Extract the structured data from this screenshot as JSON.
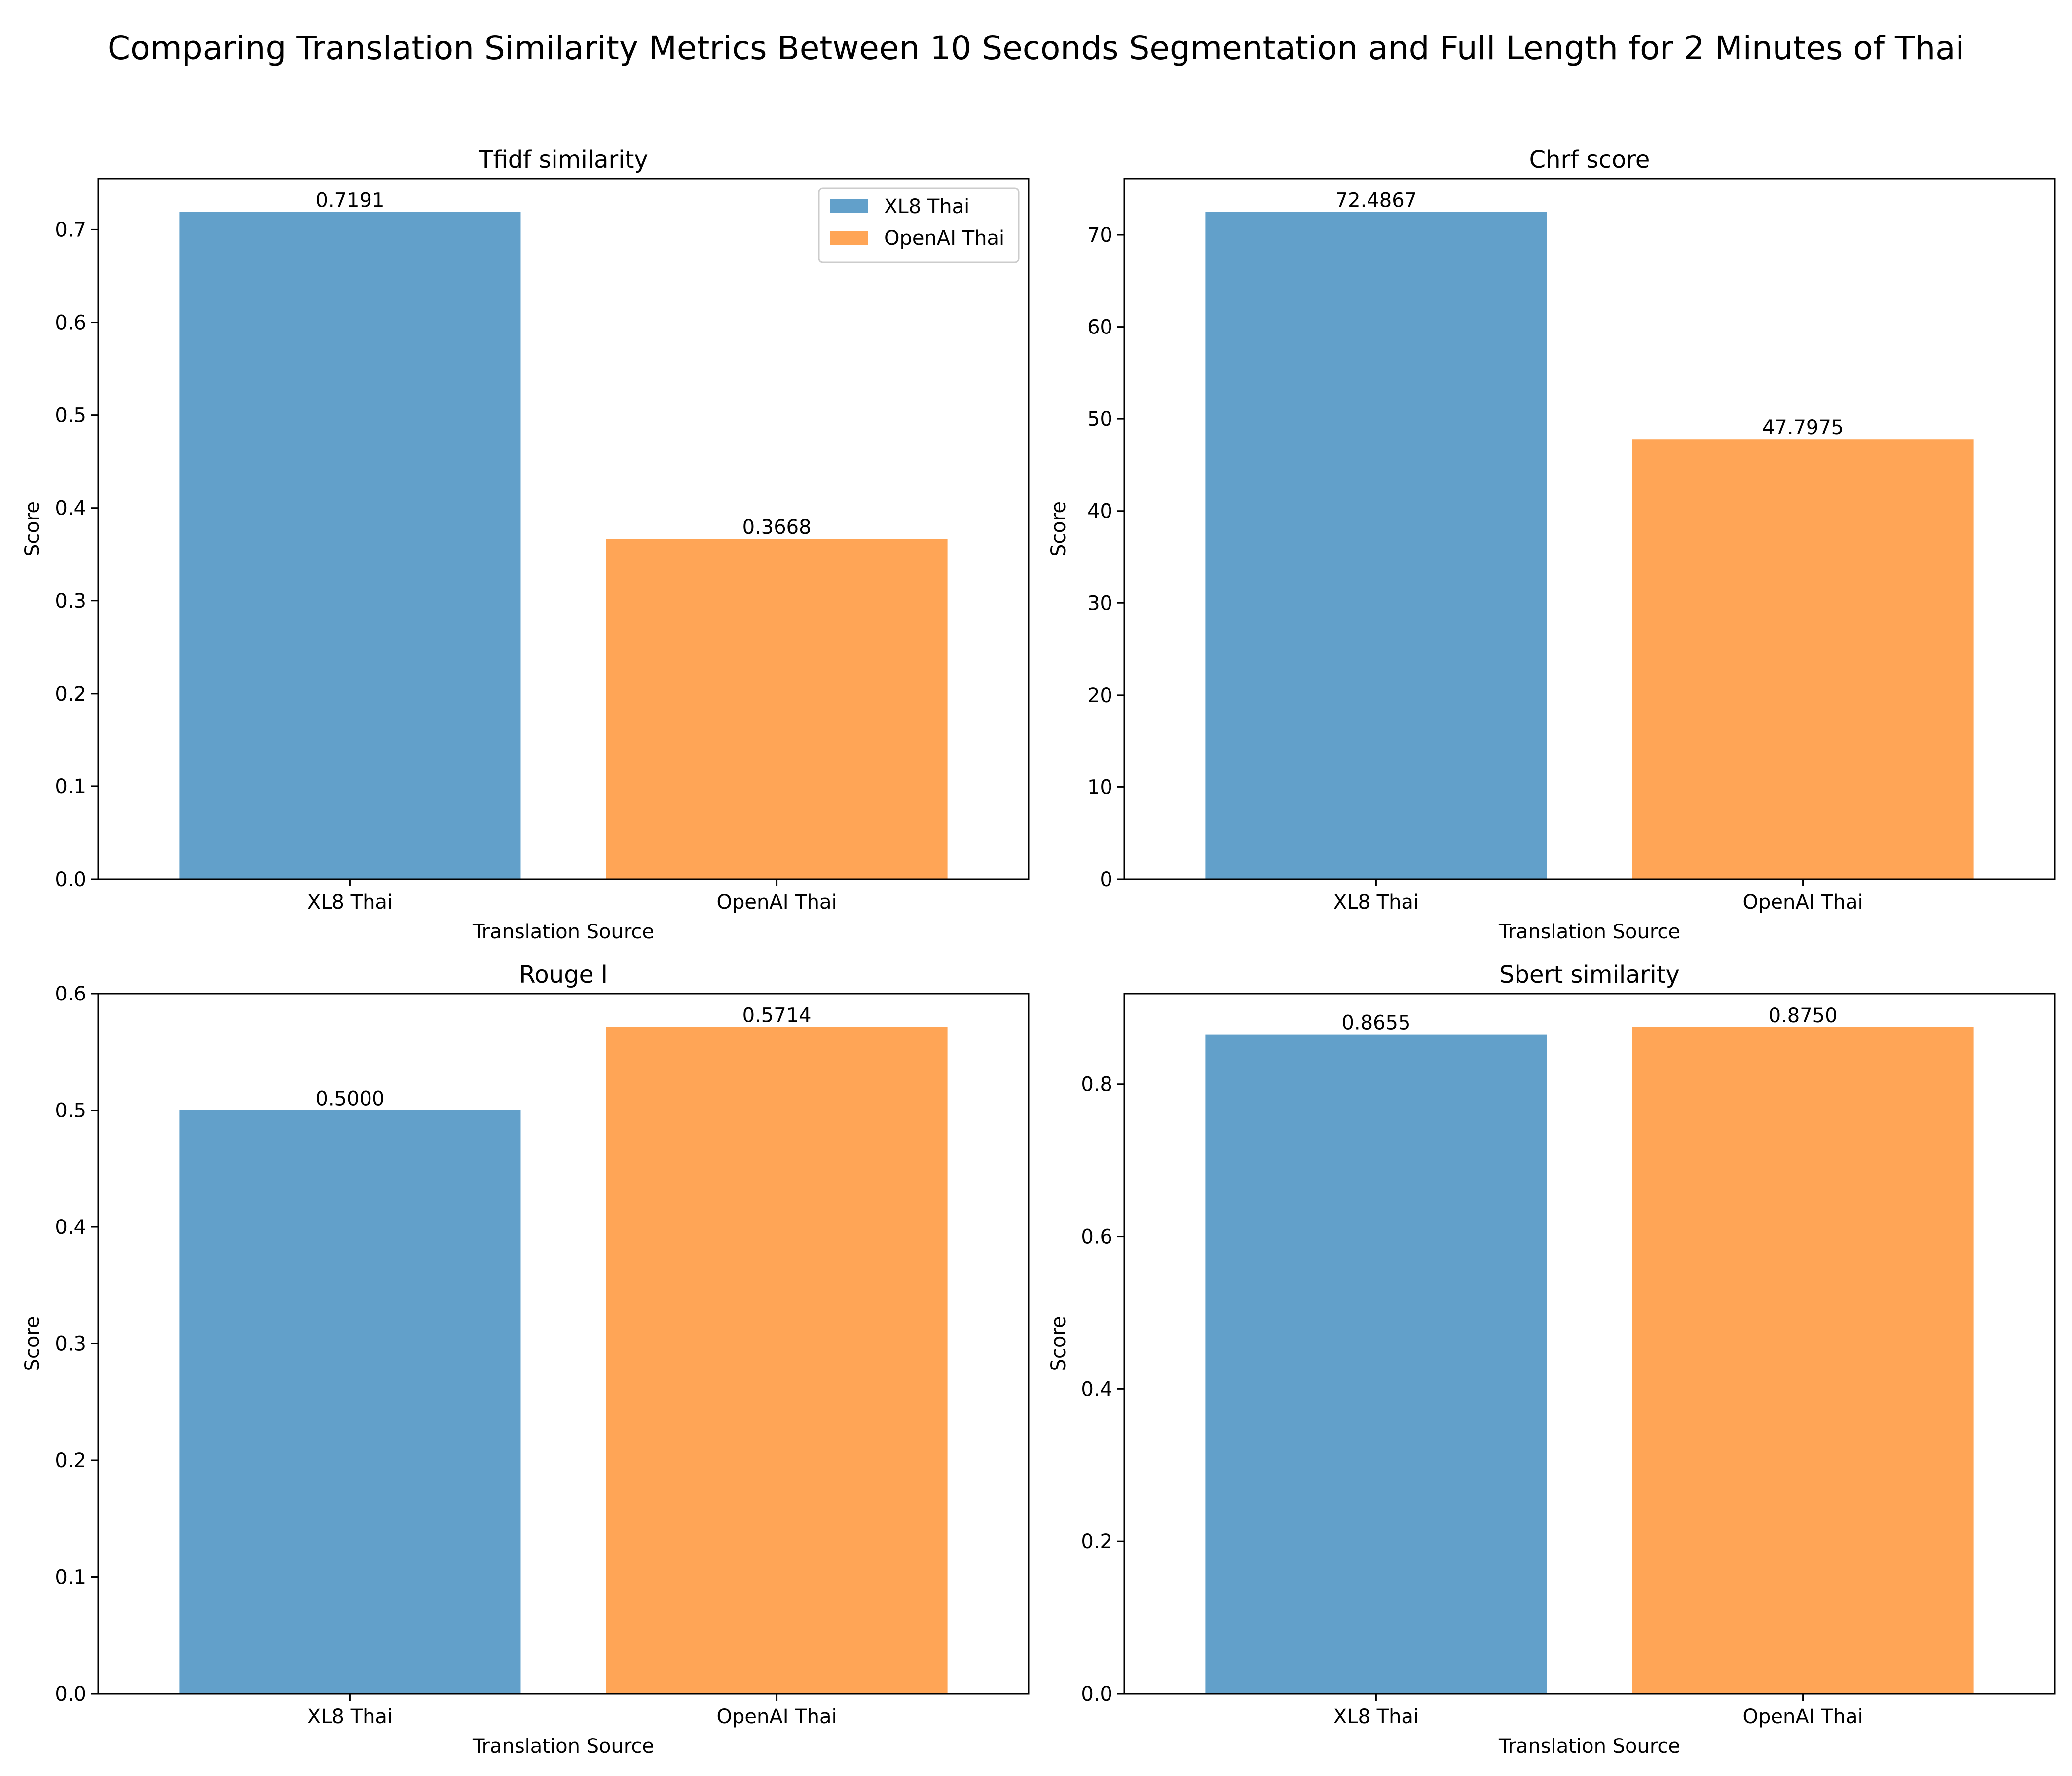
{
  "suptitle": "Comparing Translation Similarity Metrics Between 10 Seconds Segmentation and Full Length for 2 Minutes of Thai",
  "colors": {
    "series_0": "#1f77b4",
    "series_1": "#ff7f0e",
    "bar_alpha": 0.7
  },
  "chart_data": [
    {
      "type": "bar",
      "title": "Tfidf similarity",
      "xlabel": "Translation Source",
      "ylabel": "Score",
      "categories": [
        "XL8 Thai",
        "OpenAI Thai"
      ],
      "values": [
        0.7191,
        0.3668
      ],
      "value_labels": [
        "0.7191",
        "0.3668"
      ],
      "ylim": [
        0,
        0.755
      ],
      "yticks": [
        0.0,
        0.1,
        0.2,
        0.3,
        0.4,
        0.5,
        0.6,
        0.7
      ],
      "ytick_labels": [
        "0.0",
        "0.1",
        "0.2",
        "0.3",
        "0.4",
        "0.5",
        "0.6",
        "0.7"
      ],
      "legend": {
        "position": "top-right",
        "entries": [
          "XL8 Thai",
          "OpenAI Thai"
        ]
      },
      "grid": false
    },
    {
      "type": "bar",
      "title": "Chrf score",
      "xlabel": "Translation Source",
      "ylabel": "Score",
      "categories": [
        "XL8 Thai",
        "OpenAI Thai"
      ],
      "values": [
        72.4867,
        47.7975
      ],
      "value_labels": [
        "72.4867",
        "47.7975"
      ],
      "ylim": [
        0,
        76.11
      ],
      "yticks": [
        0,
        10,
        20,
        30,
        40,
        50,
        60,
        70
      ],
      "ytick_labels": [
        "0",
        "10",
        "20",
        "30",
        "40",
        "50",
        "60",
        "70"
      ],
      "grid": false
    },
    {
      "type": "bar",
      "title": "Rouge l",
      "xlabel": "Translation Source",
      "ylabel": "Score",
      "categories": [
        "XL8 Thai",
        "OpenAI Thai"
      ],
      "values": [
        0.5,
        0.5714
      ],
      "value_labels": [
        "0.5000",
        "0.5714"
      ],
      "ylim": [
        0,
        0.6
      ],
      "yticks": [
        0.0,
        0.1,
        0.2,
        0.3,
        0.4,
        0.5,
        0.6
      ],
      "ytick_labels": [
        "0.0",
        "0.1",
        "0.2",
        "0.3",
        "0.4",
        "0.5",
        "0.6"
      ],
      "grid": false
    },
    {
      "type": "bar",
      "title": "Sbert similarity",
      "xlabel": "Translation Source",
      "ylabel": "Score",
      "categories": [
        "XL8 Thai",
        "OpenAI Thai"
      ],
      "values": [
        0.8655,
        0.875
      ],
      "value_labels": [
        "0.8655",
        "0.8750"
      ],
      "ylim": [
        0,
        0.919
      ],
      "yticks": [
        0.0,
        0.2,
        0.4,
        0.6,
        0.8
      ],
      "ytick_labels": [
        "0.0",
        "0.2",
        "0.4",
        "0.6",
        "0.8"
      ],
      "grid": false
    }
  ]
}
